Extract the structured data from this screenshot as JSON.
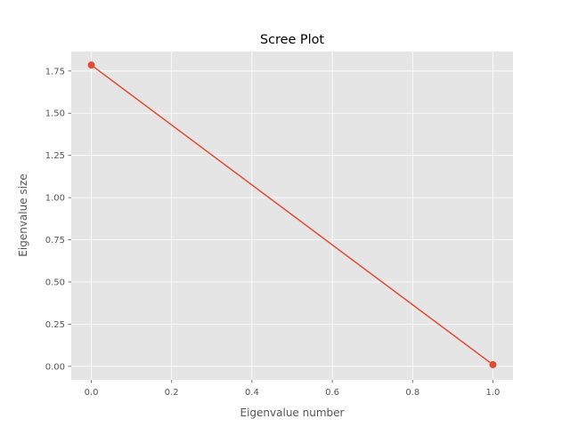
{
  "chart_data": {
    "type": "line",
    "title": "Scree Plot",
    "xlabel": "Eigenvalue number",
    "ylabel": "Eigenvalue size",
    "xlim": [
      -0.05,
      1.05
    ],
    "ylim": [
      -0.08,
      1.865
    ],
    "xticks": [
      0.0,
      0.2,
      0.4,
      0.6,
      0.8,
      1.0
    ],
    "xtick_labels": [
      "0.0",
      "0.2",
      "0.4",
      "0.6",
      "0.8",
      "1.0"
    ],
    "yticks": [
      0.0,
      0.25,
      0.5,
      0.75,
      1.0,
      1.25,
      1.5,
      1.75
    ],
    "ytick_labels": [
      "0.00",
      "0.25",
      "0.50",
      "0.75",
      "1.00",
      "1.25",
      "1.50",
      "1.75"
    ],
    "grid": true,
    "series": [
      {
        "x": [
          0,
          1
        ],
        "values": [
          1.785,
          0.01
        ],
        "color": "#E24A33",
        "marker": "circle"
      }
    ],
    "background_color": "#E5E5E5",
    "grid_color": "#FFFFFF"
  }
}
